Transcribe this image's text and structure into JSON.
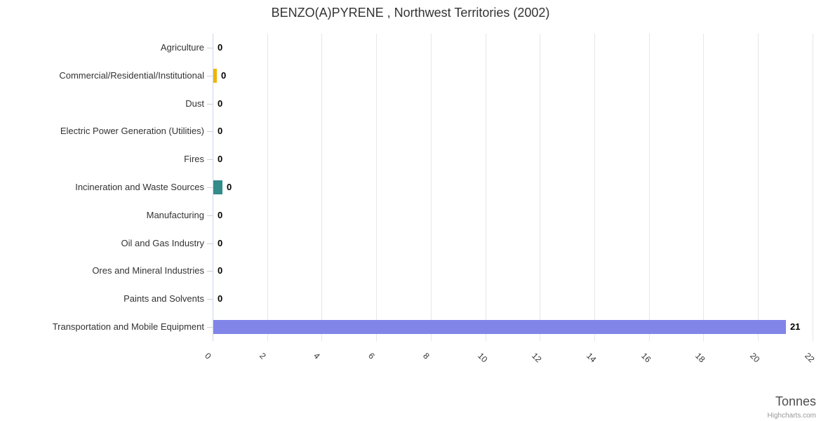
{
  "title": "BENZO(A)PYRENE , Northwest Territories (2002)",
  "chart_data": {
    "type": "bar",
    "orientation": "horizontal",
    "title": "BENZO(A)PYRENE , Northwest Territories (2002)",
    "legend": false,
    "grid": true,
    "categories": [
      "Agriculture",
      "Commercial/Residential/Institutional",
      "Dust",
      "Electric Power Generation (Utilities)",
      "Fires",
      "Incineration and Waste Sources",
      "Manufacturing",
      "Oil and Gas Industry",
      "Ores and Mineral Industries",
      "Paints and Solvents",
      "Transportation and Mobile Equipment"
    ],
    "points": [
      {
        "category": "Agriculture",
        "value": 0,
        "value_label": "0",
        "color": ""
      },
      {
        "category": "Commercial/Residential/Institutional",
        "value": 0.13,
        "value_label": "0",
        "color": "#edb40a"
      },
      {
        "category": "Dust",
        "value": 0,
        "value_label": "0",
        "color": ""
      },
      {
        "category": "Electric Power Generation (Utilities)",
        "value": 0,
        "value_label": "0",
        "color": ""
      },
      {
        "category": "Fires",
        "value": 0,
        "value_label": "0",
        "color": ""
      },
      {
        "category": "Incineration and Waste Sources",
        "value": 0.34,
        "value_label": "0",
        "color": "#318c8a"
      },
      {
        "category": "Manufacturing",
        "value": 0,
        "value_label": "0",
        "color": ""
      },
      {
        "category": "Oil and Gas Industry",
        "value": 0,
        "value_label": "0",
        "color": ""
      },
      {
        "category": "Ores and Mineral Industries",
        "value": 0,
        "value_label": "0",
        "color": ""
      },
      {
        "category": "Paints and Solvents",
        "value": 0,
        "value_label": "0",
        "color": ""
      },
      {
        "category": "Transportation and Mobile Equipment",
        "value": 21,
        "value_label": "21",
        "color": "#8185e8"
      }
    ],
    "x_axis": {
      "title": "Tonnes",
      "min": 0,
      "max": 22,
      "tick_interval": 2,
      "tick_labels": [
        "0",
        "2",
        "4",
        "6",
        "8",
        "10",
        "12",
        "14",
        "16",
        "18",
        "20",
        "22"
      ]
    }
  },
  "credits": {
    "label": "Highcharts.com"
  }
}
